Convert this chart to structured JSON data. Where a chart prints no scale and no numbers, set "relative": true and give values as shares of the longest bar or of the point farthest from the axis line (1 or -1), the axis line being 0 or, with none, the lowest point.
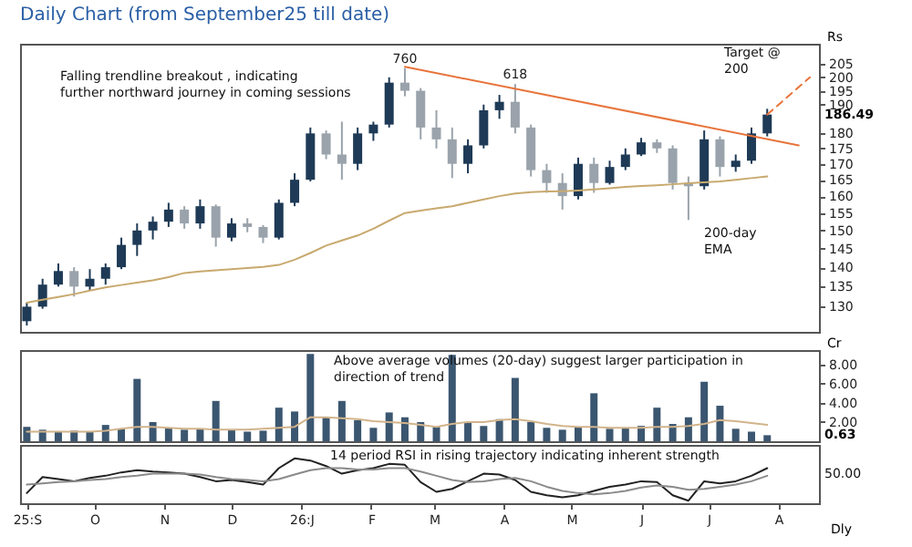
{
  "chart_data": [
    {
      "type": "candlestick",
      "title": "Daily Chart (from September25 till date)",
      "ylabel": "Rs",
      "log": "y",
      "tick_labels": "y",
      "x": [
        "2025-09-01",
        "2025-09-08",
        "2025-09-15",
        "2025-09-22",
        "2025-09-29",
        "2025-10-06",
        "2025-10-13",
        "2025-10-20",
        "2025-10-27",
        "2025-11-03",
        "2025-11-10",
        "2025-11-17",
        "2025-11-24",
        "2025-12-01",
        "2025-12-08",
        "2025-12-15",
        "2025-12-22",
        "2025-12-29",
        "2026-01-05",
        "2026-01-12",
        "2026-01-19",
        "2026-01-26",
        "2026-02-02",
        "2026-02-09",
        "2026-02-16",
        "2026-02-23",
        "2026-03-02",
        "2026-03-09",
        "2026-03-16",
        "2026-03-23",
        "2026-03-30",
        "2026-04-06",
        "2026-04-13",
        "2026-04-20",
        "2026-04-27",
        "2026-05-04",
        "2026-05-11",
        "2026-05-18",
        "2026-05-25",
        "2026-06-01",
        "2026-06-08",
        "2026-06-15",
        "2026-06-22",
        "2026-06-29",
        "2026-07-06",
        "2026-07-13",
        "2026-07-20",
        "2026-07-27"
      ],
      "ohlc": [
        [
          126.5,
          131,
          125.5,
          130
        ],
        [
          130,
          137,
          129.5,
          135.5
        ],
        [
          135.5,
          141,
          135,
          139
        ],
        [
          139,
          140,
          132.5,
          135
        ],
        [
          135,
          139.5,
          134,
          137
        ],
        [
          137,
          141,
          135.5,
          140
        ],
        [
          140,
          148,
          139.5,
          146
        ],
        [
          146,
          152,
          143,
          150
        ],
        [
          150,
          154,
          147.5,
          152.5
        ],
        [
          152.5,
          158,
          151,
          156
        ],
        [
          156,
          157,
          150.5,
          152
        ],
        [
          152,
          159,
          150.5,
          157
        ],
        [
          157,
          157.5,
          145.5,
          148
        ],
        [
          148,
          153.5,
          147,
          152
        ],
        [
          152,
          153.5,
          149.5,
          151
        ],
        [
          151,
          151.5,
          146.5,
          148
        ],
        [
          148,
          159,
          147.5,
          158
        ],
        [
          158,
          167,
          157,
          165
        ],
        [
          165,
          182,
          164.5,
          180
        ],
        [
          180,
          181,
          171.5,
          173
        ],
        [
          173,
          184,
          165,
          170
        ],
        [
          170,
          182,
          168,
          180
        ],
        [
          180,
          184,
          177.5,
          183
        ],
        [
          183,
          200,
          182,
          198
        ],
        [
          198,
          203.5,
          193,
          195
        ],
        [
          195,
          196,
          178,
          182
        ],
        [
          182,
          188,
          175,
          178
        ],
        [
          178,
          182,
          165.5,
          170
        ],
        [
          170,
          178,
          167,
          176
        ],
        [
          176,
          190,
          175,
          188
        ],
        [
          188,
          193.5,
          185,
          191
        ],
        [
          191,
          197.5,
          180,
          182
        ],
        [
          182,
          183,
          166,
          168
        ],
        [
          168,
          170,
          161,
          164
        ],
        [
          164,
          167,
          156,
          160
        ],
        [
          160,
          172,
          159,
          170
        ],
        [
          170,
          172,
          161,
          164
        ],
        [
          164,
          171,
          163.5,
          169
        ],
        [
          169,
          175,
          168,
          173
        ],
        [
          173,
          178.5,
          172.5,
          177
        ],
        [
          177,
          178,
          173.5,
          175
        ],
        [
          175,
          176,
          162,
          164
        ],
        [
          164,
          166,
          153,
          163
        ],
        [
          163,
          181,
          162,
          178
        ],
        [
          178,
          179,
          166,
          169
        ],
        [
          169,
          173,
          167.5,
          171
        ],
        [
          171,
          182,
          170,
          180
        ],
        [
          180,
          188.5,
          179,
          186.49
        ]
      ],
      "series": [
        {
          "type": "line",
          "color": "#c8a96e",
          "values": [
            131,
            131.7,
            132.4,
            133.1,
            134,
            134.8,
            135.4,
            136,
            136.6,
            137.4,
            138.5,
            138.9,
            139.2,
            139.5,
            139.8,
            140.1,
            140.6,
            142,
            143.8,
            145.8,
            147.2,
            148.6,
            150.5,
            152.8,
            155,
            155.7,
            156.4,
            157,
            158,
            159,
            160,
            160.8,
            161.2,
            161.4,
            161.5,
            161.7,
            162,
            162.4,
            162.8,
            163.1,
            163.3,
            163.6,
            163.9,
            164.2,
            164.5,
            165,
            165.5,
            166
          ]
        },
        {
          "type": "line",
          "color": "#e8743b",
          "x": [
            "2026-02-16",
            "2026-08-10"
          ],
          "values": [
            204,
            176
          ]
        },
        {
          "type": "line",
          "color": "#e8743b",
          "line_style": "dashed",
          "x": [
            "2026-07-27",
            "2026-08-15"
          ],
          "values": [
            186.49,
            200
          ]
        }
      ],
      "xlim": [
        "2025-08-29",
        "2026-08-19"
      ],
      "ylim": [
        124,
        213
      ],
      "yticks": [
        130,
        135,
        140,
        145,
        150,
        155,
        160,
        165,
        170,
        175,
        180,
        190,
        195,
        200,
        205
      ],
      "annotations": [
        "Falling trendline  breakout , indicating further northward journey in coming sessions",
        "Target @ 200",
        "200-day EMA",
        {
          "text": "760",
          "x": "2026-02-16",
          "y": 203.5
        },
        {
          "text": "618",
          "x": "2026-04-06",
          "y": 197.5
        },
        "186.49"
      ]
    },
    {
      "type": "bar",
      "ylabel": "Cr",
      "tick_labels": "y",
      "x": [
        "2025-09-01",
        "2025-09-08",
        "2025-09-15",
        "2025-09-22",
        "2025-09-29",
        "2025-10-06",
        "2025-10-13",
        "2025-10-20",
        "2025-10-27",
        "2025-11-03",
        "2025-11-10",
        "2025-11-17",
        "2025-11-24",
        "2025-12-01",
        "2025-12-08",
        "2025-12-15",
        "2025-12-22",
        "2025-12-29",
        "2026-01-05",
        "2026-01-12",
        "2026-01-19",
        "2026-01-26",
        "2026-02-02",
        "2026-02-09",
        "2026-02-16",
        "2026-02-23",
        "2026-03-02",
        "2026-03-09",
        "2026-03-16",
        "2026-03-23",
        "2026-03-30",
        "2026-04-06",
        "2026-04-13",
        "2026-04-20",
        "2026-04-27",
        "2026-05-04",
        "2026-05-11",
        "2026-05-18",
        "2026-05-25",
        "2026-06-01",
        "2026-06-08",
        "2026-06-15",
        "2026-06-22",
        "2026-06-29",
        "2026-07-06",
        "2026-07-13",
        "2026-07-20",
        "2026-07-27"
      ],
      "series": [
        {
          "type": "bar",
          "color": "#3b5670",
          "values": [
            1.5,
            1.2,
            1.0,
            1.1,
            1.0,
            1.7,
            1.3,
            6.5,
            2.0,
            1.4,
            1.2,
            1.3,
            4.2,
            1.2,
            1.0,
            1.1,
            3.5,
            3.1,
            9.1,
            2.5,
            4.2,
            2.2,
            1.4,
            3.0,
            2.5,
            2.0,
            1.5,
            9.0,
            2.0,
            1.6,
            2.3,
            6.6,
            2.0,
            1.4,
            1.2,
            1.5,
            5.0,
            1.3,
            1.4,
            1.6,
            3.5,
            1.8,
            2.5,
            6.2,
            3.7,
            1.3,
            1.0,
            0.63
          ]
        },
        {
          "type": "line",
          "color": "#d2b48c",
          "values": [
            1.0,
            1.0,
            1.0,
            1.0,
            1.0,
            1.1,
            1.3,
            1.5,
            1.5,
            1.4,
            1.3,
            1.3,
            1.2,
            1.2,
            1.2,
            1.3,
            1.4,
            1.5,
            2.5,
            2.5,
            2.4,
            2.3,
            2.1,
            2.0,
            1.9,
            1.7,
            1.5,
            1.8,
            2.0,
            2.0,
            2.2,
            2.3,
            2.1,
            1.8,
            1.6,
            1.5,
            1.5,
            1.4,
            1.4,
            1.4,
            1.5,
            1.5,
            1.6,
            1.8,
            2.2,
            2.1,
            1.9,
            1.7
          ]
        }
      ],
      "xlim": [
        "2025-08-29",
        "2026-08-19"
      ],
      "ylim": [
        0,
        9.5
      ],
      "yticks": [
        {
          "value": 2,
          "label": "2.00"
        },
        {
          "value": 4,
          "label": "4.00"
        },
        {
          "value": 6,
          "label": "6.00"
        },
        {
          "value": 8,
          "label": "8.00"
        }
      ],
      "annotations": [
        "Above average volumes  (20-day) suggest larger participation in direction of trend",
        "0.63"
      ]
    },
    {
      "type": "line",
      "xlabel": "Dly",
      "relative": true,
      "x": [
        "2025-09-01",
        "2025-09-08",
        "2025-09-15",
        "2025-09-22",
        "2025-09-29",
        "2025-10-06",
        "2025-10-13",
        "2025-10-20",
        "2025-10-27",
        "2025-11-03",
        "2025-11-10",
        "2025-11-17",
        "2025-11-24",
        "2025-12-01",
        "2025-12-08",
        "2025-12-15",
        "2025-12-22",
        "2025-12-29",
        "2026-01-05",
        "2026-01-12",
        "2026-01-19",
        "2026-01-26",
        "2026-02-02",
        "2026-02-09",
        "2026-02-16",
        "2026-02-23",
        "2026-03-02",
        "2026-03-09",
        "2026-03-16",
        "2026-03-23",
        "2026-03-30",
        "2026-04-06",
        "2026-04-13",
        "2026-04-20",
        "2026-04-27",
        "2026-05-04",
        "2026-05-11",
        "2026-05-18",
        "2026-05-25",
        "2026-06-01",
        "2026-06-08",
        "2026-06-15",
        "2026-06-22",
        "2026-06-29",
        "2026-07-06",
        "2026-07-13",
        "2026-07-20",
        "2026-07-27"
      ],
      "series": [
        {
          "color": "#222222",
          "values": [
            0.18,
            0.56,
            0.51,
            0.46,
            0.54,
            0.59,
            0.67,
            0.72,
            0.69,
            0.67,
            0.64,
            0.56,
            0.46,
            0.49,
            0.44,
            0.38,
            0.77,
            1,
            0.95,
            0.82,
            0.64,
            0.72,
            0.77,
            0.87,
            0.85,
            0.44,
            0.21,
            0.28,
            0.46,
            0.64,
            0.62,
            0.49,
            0.21,
            0.13,
            0.08,
            0.13,
            0.23,
            0.33,
            0.38,
            0.46,
            0.44,
            0.13,
            0,
            0.46,
            0.41,
            0.46,
            0.59,
            0.77
          ]
        },
        {
          "color": "#8a8a8a",
          "values": [
            0.38,
            0.41,
            0.44,
            0.46,
            0.49,
            0.51,
            0.56,
            0.59,
            0.64,
            0.64,
            0.64,
            0.62,
            0.56,
            0.51,
            0.49,
            0.46,
            0.51,
            0.62,
            0.72,
            0.77,
            0.77,
            0.74,
            0.74,
            0.77,
            0.77,
            0.69,
            0.59,
            0.49,
            0.44,
            0.46,
            0.51,
            0.54,
            0.46,
            0.33,
            0.23,
            0.18,
            0.15,
            0.18,
            0.23,
            0.31,
            0.36,
            0.33,
            0.26,
            0.28,
            0.33,
            0.38,
            0.46,
            0.59
          ]
        }
      ],
      "xlim": [
        "2025-08-29",
        "2026-08-19"
      ],
      "xticks": [
        {
          "value": "2025-09-01",
          "label": "25:S"
        },
        {
          "value": "2025-10-01",
          "label": "O"
        },
        {
          "value": "2025-11-01",
          "label": "N"
        },
        {
          "value": "2025-12-01",
          "label": "D"
        },
        {
          "value": "2026-01-01",
          "label": "26:J"
        },
        {
          "value": "2026-02-01",
          "label": "F"
        },
        {
          "value": "2026-03-01",
          "label": "M"
        },
        {
          "value": "2026-04-01",
          "label": "A"
        },
        {
          "value": "2026-05-01",
          "label": "M"
        },
        {
          "value": "2026-06-01",
          "label": "J"
        },
        {
          "value": "2026-07-01",
          "label": "J"
        },
        {
          "value": "2026-08-01",
          "label": "A"
        }
      ],
      "annotations": [
        "14 period RSI in rising trajectory  indicating inherent strength",
        "50.00"
      ]
    }
  ]
}
